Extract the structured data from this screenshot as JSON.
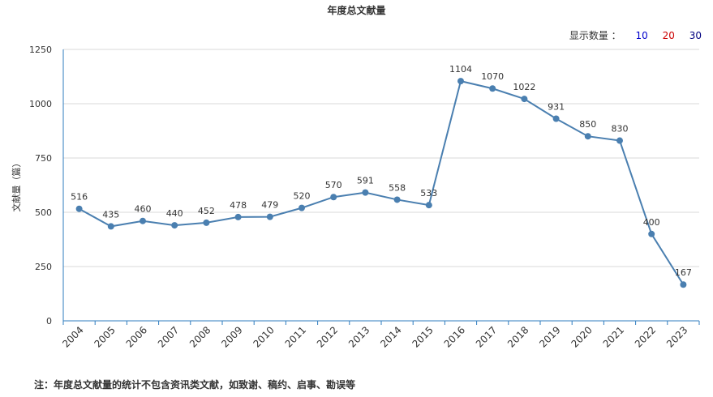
{
  "header": {
    "title": "年度总文献量"
  },
  "controls": {
    "display_label": "显示数量 ：",
    "options": [
      "10",
      "20",
      "30"
    ]
  },
  "note": "注：年度总文献量的统计不包含资讯类文献，如致谢、稿约、启事、勘误等",
  "chart_data": {
    "type": "line",
    "title": "年度总文献量",
    "ylabel": "文献量（篇）",
    "xlabel": "",
    "categories": [
      "2004",
      "2005",
      "2006",
      "2007",
      "2008",
      "2009",
      "2010",
      "2011",
      "2012",
      "2013",
      "2014",
      "2015",
      "2016",
      "2017",
      "2018",
      "2019",
      "2020",
      "2021",
      "2022",
      "2023"
    ],
    "values": [
      516,
      435,
      460,
      440,
      452,
      478,
      479,
      520,
      570,
      591,
      558,
      533,
      1104,
      1070,
      1022,
      931,
      850,
      830,
      400,
      167
    ],
    "ylim": [
      0,
      1250
    ],
    "yticks": [
      0,
      250,
      500,
      750,
      1000,
      1250
    ],
    "grid": true,
    "line_color": "#4a7fb0"
  }
}
